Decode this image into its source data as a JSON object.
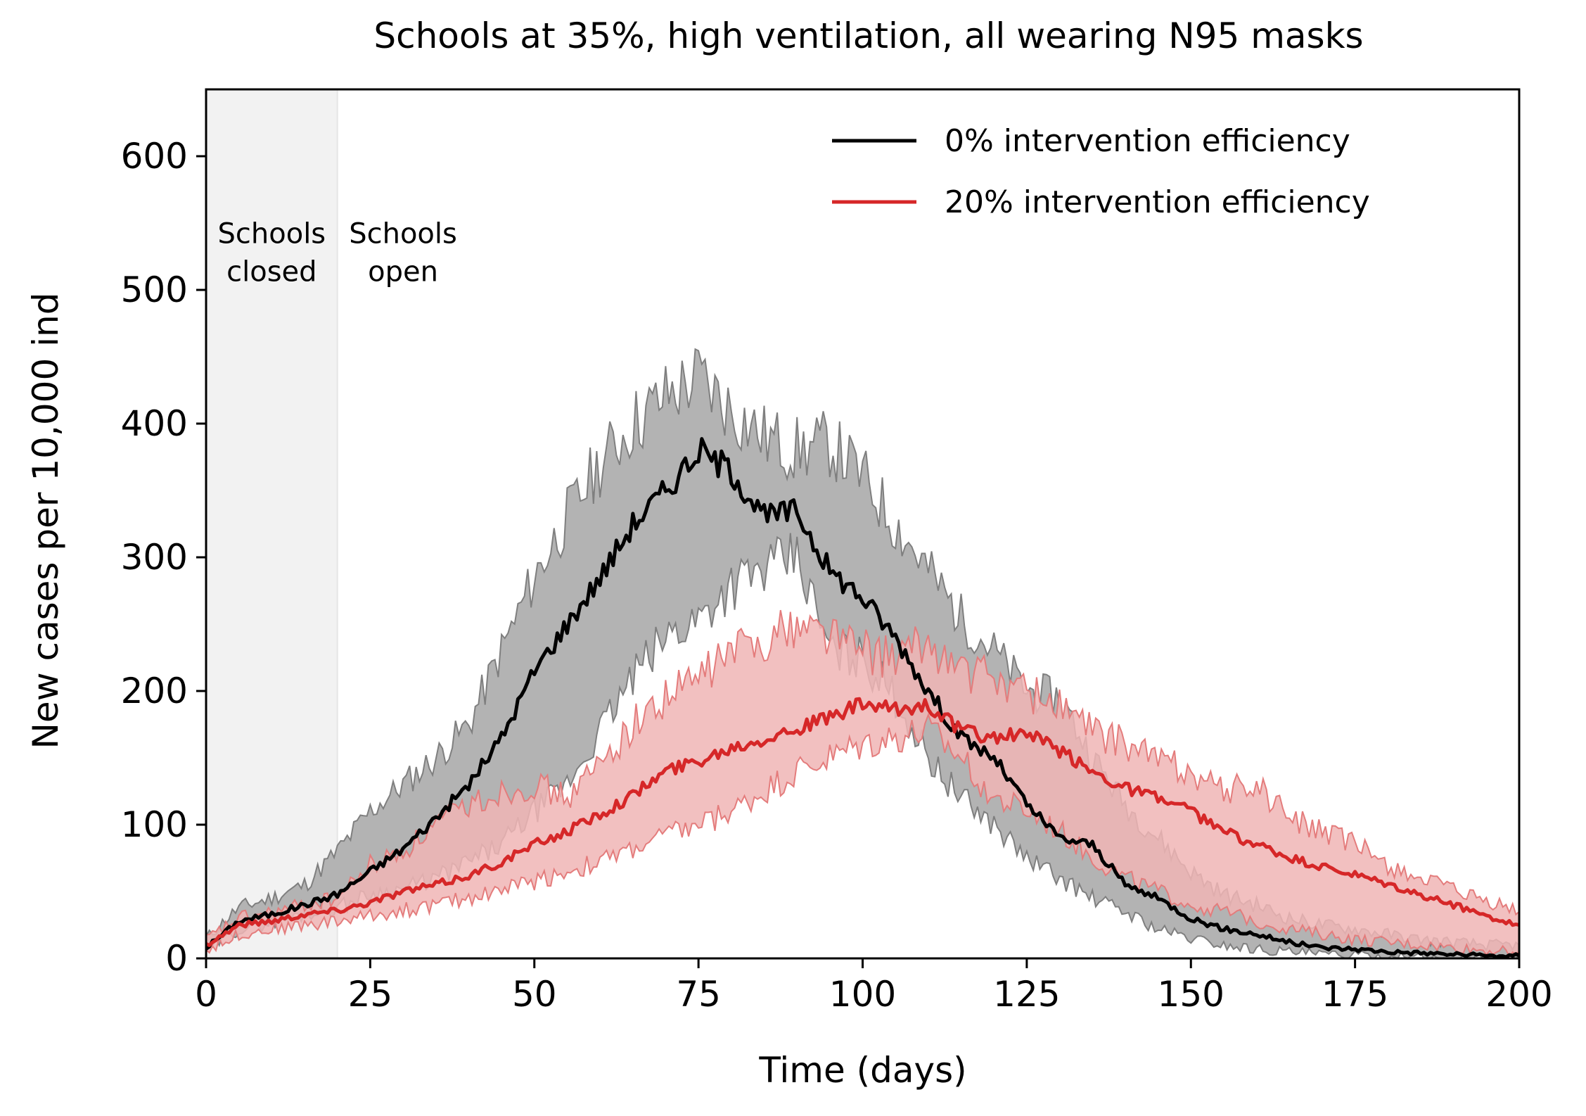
{
  "chart_data": {
    "type": "line",
    "title": "Schools at 35%, high ventilation, all wearing N95 masks",
    "xlabel": "Time (days)",
    "ylabel": "New cases per 10,000 ind",
    "xlim": [
      0,
      200
    ],
    "ylim": [
      0,
      650
    ],
    "xticks": [
      0,
      25,
      50,
      75,
      100,
      125,
      150,
      175,
      200
    ],
    "yticks": [
      0,
      100,
      200,
      300,
      400,
      500,
      600
    ],
    "grid": false,
    "legend_position": "top-right",
    "shaded_region": {
      "x_start": 0,
      "x_end": 20,
      "color": "#f2f2f2"
    },
    "annotations": [
      {
        "lines": [
          "Schools",
          "closed"
        ],
        "x": 10,
        "y": 535
      },
      {
        "lines": [
          "Schools",
          "open"
        ],
        "x": 30,
        "y": 535
      }
    ],
    "series": [
      {
        "name": "0% intervention efficiency",
        "color": "#000000",
        "band_color": "#b3b3b3",
        "band_edge_color": "#7f7f7f",
        "x": [
          0,
          5,
          10,
          15,
          20,
          25,
          30,
          35,
          40,
          45,
          50,
          55,
          60,
          65,
          70,
          75,
          80,
          85,
          90,
          95,
          100,
          105,
          110,
          115,
          120,
          125,
          130,
          135,
          140,
          145,
          150,
          155,
          160,
          165,
          170,
          175,
          180,
          185,
          190,
          195,
          200
        ],
        "mean": [
          8,
          28,
          33,
          40,
          48,
          65,
          82,
          105,
          130,
          165,
          215,
          250,
          285,
          325,
          350,
          380,
          365,
          330,
          335,
          290,
          270,
          240,
          200,
          165,
          150,
          115,
          90,
          85,
          55,
          45,
          30,
          22,
          18,
          12,
          8,
          7,
          5,
          4,
          3,
          2,
          2
        ],
        "upper": [
          15,
          38,
          45,
          55,
          80,
          110,
          130,
          150,
          175,
          230,
          285,
          330,
          370,
          400,
          420,
          435,
          410,
          390,
          380,
          385,
          360,
          325,
          290,
          255,
          230,
          200,
          195,
          150,
          115,
          90,
          65,
          48,
          40,
          30,
          25,
          22,
          18,
          14,
          12,
          10,
          10
        ],
        "lower": [
          5,
          22,
          27,
          33,
          38,
          48,
          52,
          60,
          72,
          85,
          110,
          130,
          170,
          210,
          240,
          255,
          280,
          290,
          300,
          230,
          225,
          195,
          150,
          120,
          100,
          75,
          60,
          45,
          35,
          22,
          15,
          10,
          7,
          5,
          3,
          2,
          1,
          1,
          0,
          0,
          0
        ]
      },
      {
        "name": "20% intervention efficiency",
        "color": "#d62728",
        "band_color": "#f0b5b5",
        "band_edge_color": "#e47c7c",
        "x": [
          0,
          5,
          10,
          15,
          20,
          25,
          30,
          35,
          40,
          45,
          50,
          55,
          60,
          65,
          70,
          75,
          80,
          85,
          90,
          95,
          100,
          105,
          110,
          115,
          120,
          125,
          130,
          135,
          140,
          145,
          150,
          155,
          160,
          165,
          170,
          175,
          180,
          185,
          190,
          195,
          200
        ],
        "mean": [
          10,
          25,
          28,
          33,
          36,
          42,
          50,
          55,
          62,
          72,
          85,
          95,
          108,
          122,
          140,
          148,
          158,
          165,
          172,
          180,
          190,
          185,
          190,
          170,
          165,
          168,
          155,
          140,
          128,
          120,
          110,
          95,
          85,
          75,
          68,
          62,
          55,
          47,
          40,
          32,
          25
        ],
        "upper": [
          14,
          30,
          34,
          40,
          45,
          70,
          80,
          100,
          115,
          125,
          130,
          120,
          145,
          175,
          195,
          210,
          230,
          240,
          250,
          245,
          230,
          225,
          235,
          215,
          210,
          200,
          190,
          170,
          160,
          150,
          140,
          125,
          130,
          105,
          95,
          85,
          70,
          60,
          50,
          42,
          35
        ],
        "lower": [
          6,
          18,
          22,
          25,
          28,
          32,
          36,
          40,
          45,
          52,
          58,
          65,
          72,
          82,
          92,
          100,
          110,
          125,
          140,
          150,
          160,
          165,
          170,
          150,
          120,
          110,
          95,
          75,
          60,
          50,
          40,
          35,
          28,
          22,
          18,
          14,
          12,
          10,
          8,
          6,
          5
        ]
      }
    ]
  }
}
